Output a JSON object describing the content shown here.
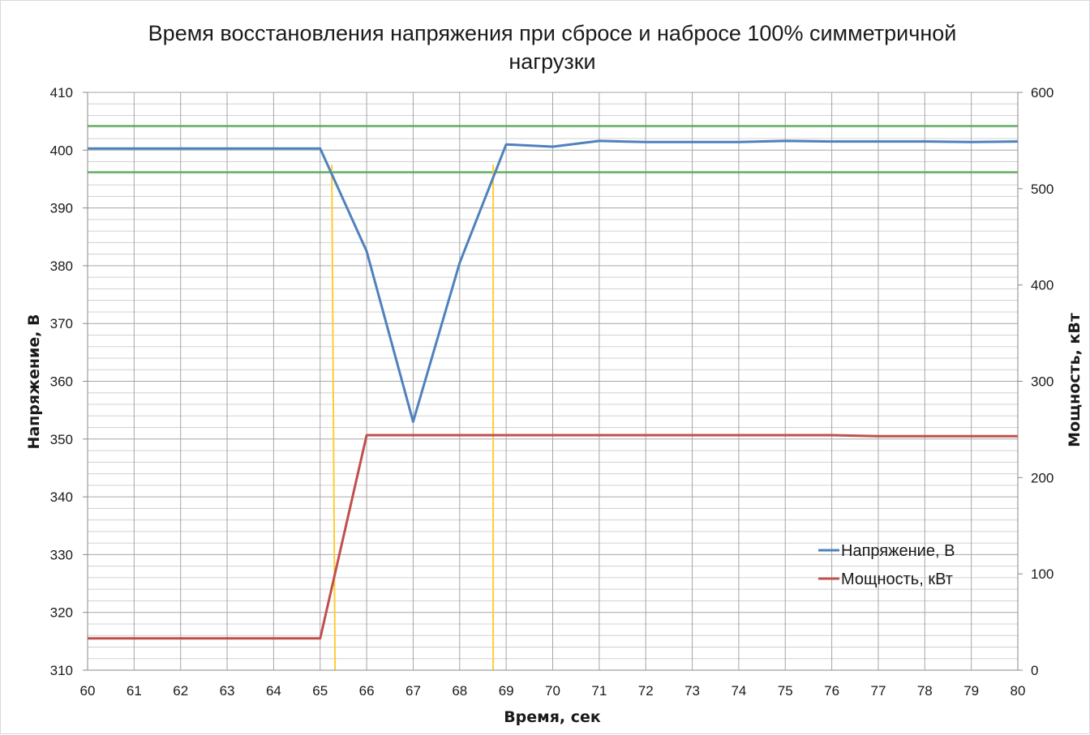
{
  "chart_data": {
    "type": "line",
    "title_line1": "Время восстановления напряжения при сбросе и набросе 100% симметричной",
    "title_line2": "нагрузки",
    "xlabel": "Время, сек",
    "ylabel_left": "Напряжение, В",
    "ylabel_right": "Мощность, кВт",
    "xlim": [
      60,
      80
    ],
    "ylim_left": [
      310,
      410
    ],
    "ylim_right": [
      0,
      600
    ],
    "x_ticks": [
      60,
      61,
      62,
      63,
      64,
      65,
      66,
      67,
      68,
      69,
      70,
      71,
      72,
      73,
      74,
      75,
      76,
      77,
      78,
      79,
      80
    ],
    "y_ticks_left": [
      310,
      320,
      330,
      340,
      350,
      360,
      370,
      380,
      390,
      400,
      410
    ],
    "y_ticks_right": [
      0,
      100,
      200,
      300,
      400,
      500,
      600
    ],
    "y_minor_step_left": 2,
    "grid": true,
    "legend_position": "bottom-right",
    "series": [
      {
        "name": "Напряжение, В",
        "axis": "left",
        "color": "#4f81bd",
        "x": [
          60,
          61,
          62,
          63,
          64,
          65,
          66,
          67,
          68,
          69,
          70,
          71,
          72,
          73,
          74,
          75,
          76,
          77,
          78,
          79,
          80
        ],
        "y": [
          400.3,
          400.3,
          400.3,
          400.3,
          400.3,
          400.3,
          382.5,
          353.0,
          380.5,
          401.0,
          400.6,
          401.6,
          401.4,
          401.4,
          401.4,
          401.6,
          401.5,
          401.5,
          401.5,
          401.4,
          401.5
        ]
      },
      {
        "name": "Мощность, кВт",
        "axis": "right",
        "color": "#c0504d",
        "x": [
          60,
          61,
          62,
          63,
          64,
          65,
          66,
          67,
          68,
          69,
          70,
          71,
          72,
          73,
          74,
          75,
          76,
          77,
          78,
          79,
          80
        ],
        "y": [
          33,
          33,
          33,
          33,
          33,
          33,
          244,
          244,
          244,
          244,
          244,
          244,
          244,
          244,
          244,
          244,
          244,
          243,
          243,
          243,
          243
        ]
      }
    ],
    "tolerance_lines": {
      "color": "#4aaa4a",
      "values": [
        404.2,
        396.2
      ]
    },
    "time_markers": {
      "color": "#ffcc33",
      "lines": [
        {
          "x1": 65.25,
          "y1": 397.5,
          "x2": 65.32,
          "y2": 310
        },
        {
          "x1": 68.72,
          "y1": 397.5,
          "x2": 68.72,
          "y2": 310
        }
      ]
    },
    "axis_color": "#888888",
    "grid_major_color": "#a6a6a6",
    "grid_minor_color": "#d0d0d0"
  }
}
